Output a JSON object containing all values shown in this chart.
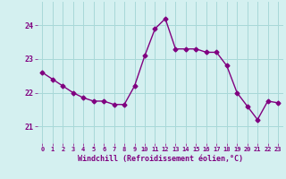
{
  "x": [
    0,
    1,
    2,
    3,
    4,
    5,
    6,
    7,
    8,
    9,
    10,
    11,
    12,
    13,
    14,
    15,
    16,
    17,
    18,
    19,
    20,
    21,
    22,
    23
  ],
  "y": [
    22.6,
    22.4,
    22.2,
    22.0,
    21.85,
    21.75,
    21.75,
    21.65,
    21.65,
    22.2,
    23.1,
    23.9,
    24.2,
    23.3,
    23.3,
    23.3,
    23.2,
    23.2,
    22.8,
    22.0,
    21.6,
    21.2,
    21.75,
    21.7
  ],
  "line_color": "#800080",
  "marker": "D",
  "marker_size": 2.5,
  "bg_color": "#d4f0f0",
  "grid_color": "#a8d8d8",
  "xlabel": "Windchill (Refroidissement éolien,°C)",
  "xlabel_color": "#800080",
  "tick_color": "#800080",
  "yticks": [
    21,
    22,
    23,
    24
  ],
  "xticks": [
    0,
    1,
    2,
    3,
    4,
    5,
    6,
    7,
    8,
    9,
    10,
    11,
    12,
    13,
    14,
    15,
    16,
    17,
    18,
    19,
    20,
    21,
    22,
    23
  ],
  "xlim": [
    -0.5,
    23.5
  ],
  "ylim": [
    20.5,
    24.7
  ]
}
